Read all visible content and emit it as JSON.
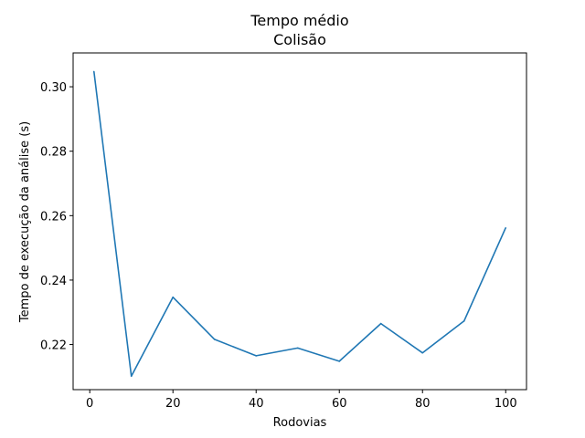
{
  "chart_data": {
    "type": "line",
    "title": "Tempo médio",
    "subtitle": "Colisão",
    "xlabel": "Rodovias",
    "ylabel": "Tempo de execução da análise (s)",
    "xlim": [
      -4,
      105
    ],
    "ylim": [
      0.206,
      0.3105
    ],
    "xticks": [
      0,
      20,
      40,
      60,
      80,
      100
    ],
    "yticks": [
      0.22,
      0.24,
      0.26,
      0.28,
      0.3
    ],
    "ytick_labels": [
      "0.22",
      "0.24",
      "0.26",
      "0.28",
      "0.30"
    ],
    "grid": false,
    "series": [
      {
        "color": "#1f77b4",
        "x": [
          1,
          10,
          20,
          30,
          40,
          50,
          60,
          70,
          80,
          90,
          100
        ],
        "y": [
          0.3047,
          0.2102,
          0.2347,
          0.2216,
          0.2165,
          0.2189,
          0.2148,
          0.2265,
          0.2174,
          0.2273,
          0.2562
        ]
      }
    ]
  }
}
